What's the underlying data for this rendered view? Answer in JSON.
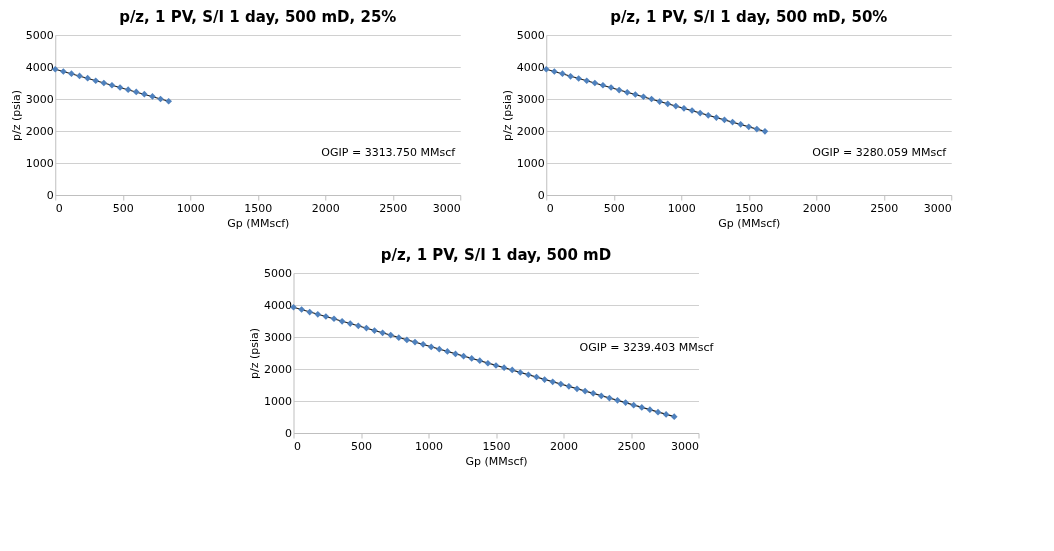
{
  "chart_data": [
    {
      "type": "scatter",
      "title": "p/z, 1 PV, S/I 1 day, 500 mD, 25%",
      "xlabel": "Gp (MMscf)",
      "ylabel": "p/z (psia)",
      "xlim": [
        0,
        3000
      ],
      "xticks": [
        0,
        500,
        1000,
        1500,
        2000,
        2500,
        3000
      ],
      "ylim": [
        0,
        5000
      ],
      "yticks": [
        0,
        1000,
        2000,
        3000,
        4000,
        5000
      ],
      "grid": "y",
      "annotations": [
        "OGIP = 3313.750 MMscf"
      ],
      "series": [
        {
          "color": "#4f81bd",
          "marker": "diamond",
          "x": [
            0,
            60,
            120,
            180,
            240,
            300,
            360,
            420,
            480,
            540,
            600,
            660,
            720,
            780,
            840
          ],
          "values": [
            3930,
            3860,
            3790,
            3720,
            3650,
            3570,
            3500,
            3430,
            3360,
            3290,
            3220,
            3150,
            3080,
            3000,
            2930
          ]
        },
        {
          "type": "line",
          "color": "#1f1f1f",
          "x": [
            0,
            840
          ],
          "values": [
            3930,
            2930
          ]
        }
      ]
    },
    {
      "type": "scatter",
      "title": "p/z, 1 PV, S/I 1 day, 500 mD, 50%",
      "xlabel": "Gp (MMscf)",
      "ylabel": "p/z (psia)",
      "xlim": [
        0,
        3000
      ],
      "xticks": [
        0,
        500,
        1000,
        1500,
        2000,
        2500,
        3000
      ],
      "ylim": [
        0,
        5000
      ],
      "yticks": [
        0,
        1000,
        2000,
        3000,
        4000,
        5000
      ],
      "grid": "y",
      "annotations": [
        "OGIP = 3280.059 MMscf"
      ],
      "series": [
        {
          "color": "#4f81bd",
          "marker": "diamond",
          "x": [
            0,
            60,
            120,
            180,
            240,
            300,
            360,
            420,
            480,
            540,
            600,
            660,
            720,
            780,
            840,
            900,
            960,
            1020,
            1080,
            1140,
            1200,
            1260,
            1320,
            1380,
            1440,
            1500,
            1560,
            1620
          ],
          "values": [
            3930,
            3860,
            3790,
            3710,
            3640,
            3570,
            3500,
            3430,
            3360,
            3280,
            3210,
            3140,
            3070,
            3000,
            2920,
            2850,
            2780,
            2710,
            2640,
            2560,
            2490,
            2420,
            2350,
            2280,
            2210,
            2130,
            2060,
            1990
          ]
        },
        {
          "type": "line",
          "color": "#1f1f1f",
          "x": [
            0,
            1620
          ],
          "values": [
            3930,
            1990
          ]
        }
      ]
    },
    {
      "type": "scatter",
      "title": "p/z, 1 PV, S/I 1 day, 500 mD",
      "xlabel": "Gp (MMscf)",
      "ylabel": "p/z (psia)",
      "xlim": [
        0,
        3000
      ],
      "xticks": [
        0,
        500,
        1000,
        1500,
        2000,
        2500,
        3000
      ],
      "ylim": [
        0,
        5000
      ],
      "yticks": [
        0,
        1000,
        2000,
        3000,
        4000,
        5000
      ],
      "grid": "y",
      "annotations": [
        "OGIP = 3239.403 MMscf"
      ],
      "series": [
        {
          "color": "#4f81bd",
          "marker": "diamond",
          "x": [
            0,
            60,
            120,
            180,
            240,
            300,
            360,
            420,
            480,
            540,
            600,
            660,
            720,
            780,
            840,
            900,
            960,
            1020,
            1080,
            1140,
            1200,
            1260,
            1320,
            1380,
            1440,
            1500,
            1560,
            1620,
            1680,
            1740,
            1800,
            1860,
            1920,
            1980,
            2040,
            2100,
            2160,
            2220,
            2280,
            2340,
            2400,
            2460,
            2520,
            2580,
            2640,
            2700,
            2760,
            2820
          ],
          "values": [
            3930,
            3860,
            3780,
            3710,
            3640,
            3570,
            3490,
            3420,
            3350,
            3280,
            3200,
            3130,
            3060,
            2980,
            2910,
            2840,
            2770,
            2690,
            2620,
            2550,
            2470,
            2400,
            2330,
            2260,
            2180,
            2110,
            2040,
            1970,
            1890,
            1820,
            1750,
            1670,
            1600,
            1530,
            1460,
            1380,
            1310,
            1240,
            1160,
            1090,
            1020,
            950,
            870,
            800,
            730,
            650,
            580,
            510
          ]
        },
        {
          "type": "line",
          "color": "#1f1f1f",
          "x": [
            0,
            2820
          ],
          "values": [
            3930,
            510
          ]
        }
      ]
    }
  ]
}
